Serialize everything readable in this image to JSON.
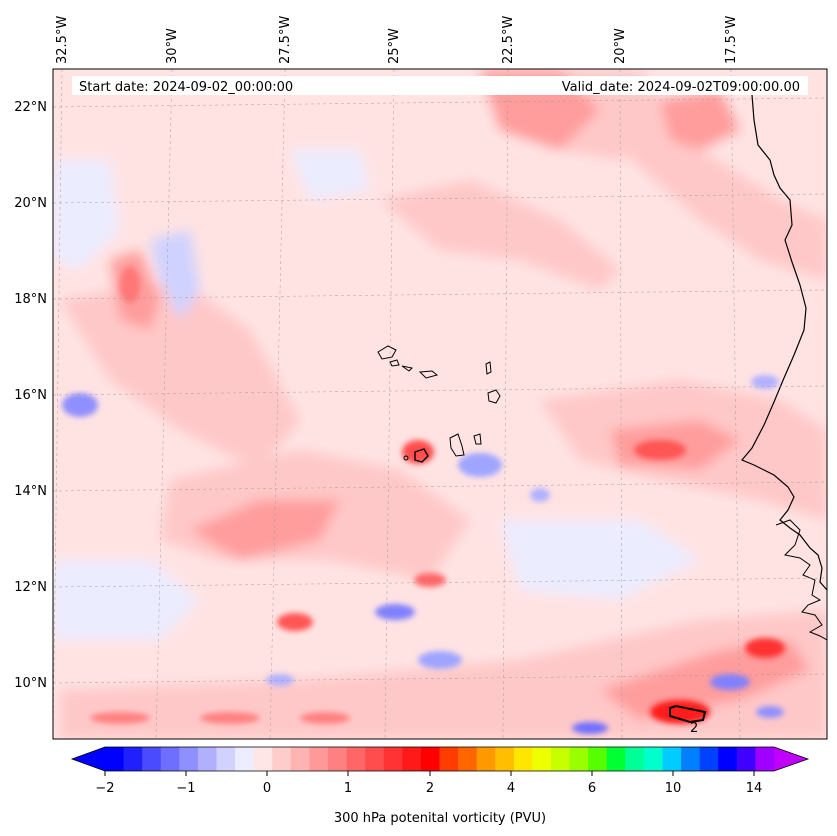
{
  "header": {
    "start_date": "Start date: 2024-09-02_00:00:00",
    "valid_date": "Valid_date: 2024-09-02T09:00:00.00"
  },
  "axes": {
    "lon_labels": [
      "32.5°W",
      "30°W",
      "27.5°W",
      "25°W",
      "22.5°W",
      "20°W",
      "17.5°W"
    ],
    "lat_labels": [
      "22°N",
      "20°N",
      "18°N",
      "16°N",
      "14°N",
      "12°N",
      "10°N"
    ]
  },
  "map_extent": {
    "lon_min": -32.6,
    "lon_max": -15.5,
    "lat_min": 8.9,
    "lat_max": 22.8
  },
  "colorbar": {
    "label": "300 hPa potenital vorticity (PVU)",
    "ticks": [
      "−2",
      "−1",
      "0",
      "1",
      "2",
      "4",
      "6",
      "10",
      "14"
    ],
    "colors": [
      "#0000ff",
      "#2020ff",
      "#4a4aff",
      "#6e6eff",
      "#8f8fff",
      "#b0b0ff",
      "#d2d2ff",
      "#ededff",
      "#ffe6e6",
      "#ffcccc",
      "#ffb3b3",
      "#ff9999",
      "#ff8080",
      "#ff6666",
      "#ff4d4d",
      "#ff3333",
      "#ff1a1a",
      "#ff0000",
      "#ff3d00",
      "#ff6600",
      "#ff9900",
      "#ffbf00",
      "#ffe600",
      "#eeff00",
      "#c8ff00",
      "#99ff00",
      "#55ff00",
      "#00ff33",
      "#00ff99",
      "#00ffcc",
      "#00ccff",
      "#0080ff",
      "#0040ff",
      "#0000ff",
      "#4000ff",
      "#a000ff"
    ],
    "extend_min_color": "#0000ff",
    "extend_max_color": "#c000ff"
  },
  "annotations": {
    "contour_label": "2"
  }
}
